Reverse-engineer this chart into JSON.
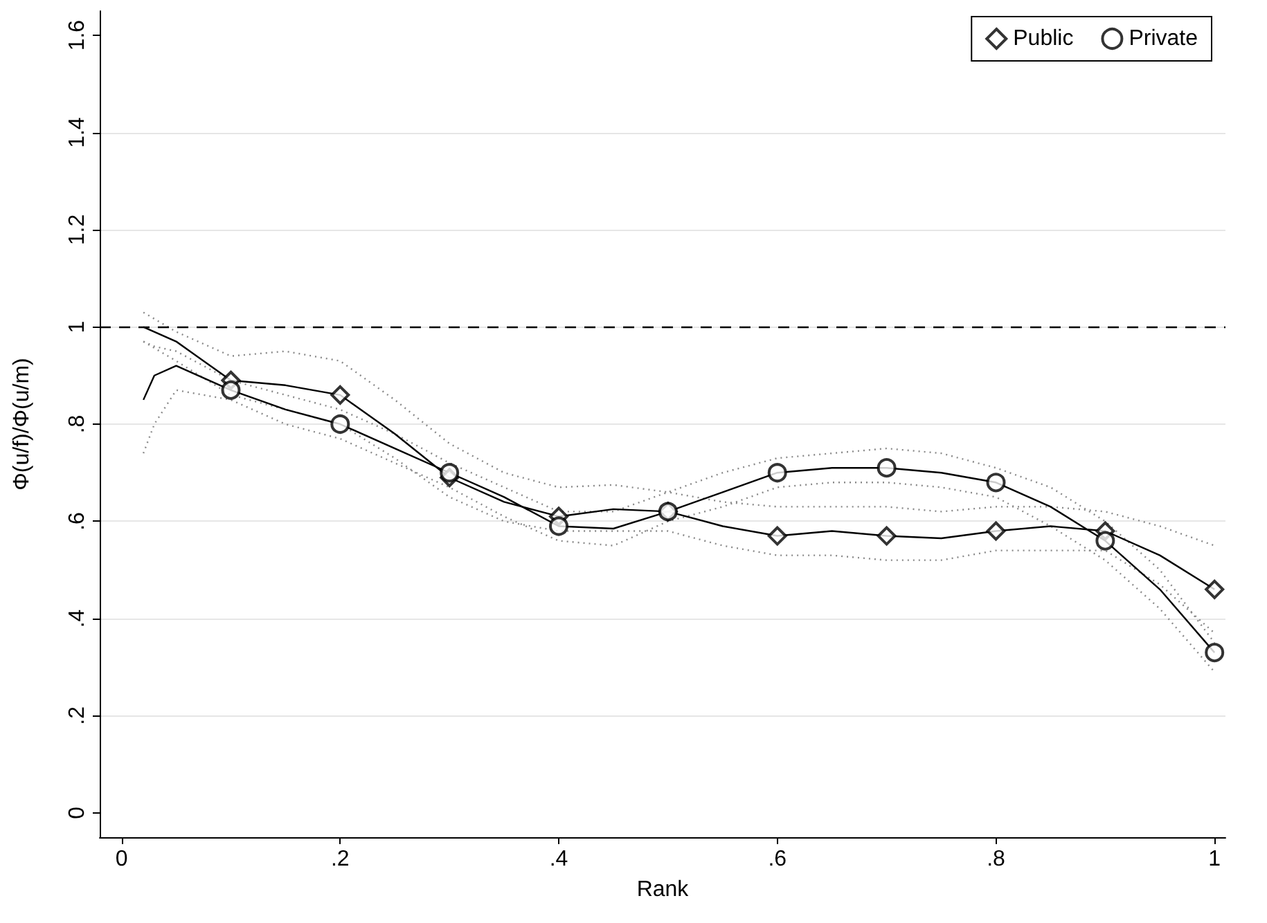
{
  "chart_data": {
    "type": "line",
    "xlabel": "Rank",
    "ylabel": "Φ(u/f)/Φ(u/m)",
    "xlim": [
      -0.02,
      1.01
    ],
    "ylim": [
      -0.05,
      1.65
    ],
    "xticks": [
      0,
      {
        "value": 0.2,
        "label": ".2"
      },
      {
        "value": 0.4,
        "label": ".4"
      },
      {
        "value": 0.6,
        "label": ".6"
      },
      {
        "value": 0.8,
        "label": ".8"
      },
      1
    ],
    "yticks": [
      0,
      {
        "value": 0.2,
        "label": ".2"
      },
      {
        "value": 0.4,
        "label": ".4"
      },
      {
        "value": 0.6,
        "label": ".6"
      },
      {
        "value": 0.8,
        "label": ".8"
      },
      1,
      1.2,
      1.4,
      1.6
    ],
    "grid": "y",
    "legend": "top right",
    "marker": "none",
    "line_style": "solid",
    "ref_lines": [
      {
        "axis": "y",
        "value": 1,
        "line_style": "dashed"
      }
    ],
    "series": [
      {
        "name": "Public",
        "type": "scatter",
        "marker": "diamond",
        "color": "#000000",
        "x": [
          0.1,
          0.2,
          0.3,
          0.4,
          0.5,
          0.6,
          0.7,
          0.8,
          0.9,
          1
        ],
        "values": [
          0.89,
          0.86,
          0.69,
          0.61,
          0.62,
          0.57,
          0.57,
          0.58,
          0.58,
          0.46
        ]
      },
      {
        "name": "Private",
        "type": "scatter",
        "marker": "circle",
        "color": "#000000",
        "x": [
          0.1,
          0.2,
          0.3,
          0.4,
          0.5,
          0.6,
          0.7,
          0.8,
          0.9,
          1
        ],
        "values": [
          0.87,
          0.8,
          0.7,
          0.59,
          0.62,
          0.7,
          0.71,
          0.68,
          0.56,
          0.33
        ]
      },
      {
        "color": "#000000",
        "x": [
          0.02,
          0.05,
          0.1,
          0.15,
          0.2,
          0.25,
          0.3,
          0.35,
          0.4,
          0.45,
          0.5,
          0.55,
          0.6,
          0.65,
          0.7,
          0.75,
          0.8,
          0.85,
          0.9,
          0.95,
          1
        ],
        "values": [
          1.0,
          0.97,
          0.89,
          0.88,
          0.86,
          0.78,
          0.69,
          0.64,
          0.61,
          0.625,
          0.62,
          0.59,
          0.57,
          0.58,
          0.57,
          0.565,
          0.58,
          0.59,
          0.58,
          0.53,
          0.46
        ]
      },
      {
        "color": "#8a8a8a",
        "line_style": "dotted",
        "x": [
          0.02,
          0.05,
          0.1,
          0.15,
          0.2,
          0.25,
          0.3,
          0.35,
          0.4,
          0.45,
          0.5,
          0.55,
          0.6,
          0.65,
          0.7,
          0.75,
          0.8,
          0.85,
          0.9,
          0.95,
          1
        ],
        "values": [
          1.03,
          0.99,
          0.94,
          0.95,
          0.93,
          0.85,
          0.76,
          0.7,
          0.67,
          0.675,
          0.66,
          0.64,
          0.63,
          0.63,
          0.63,
          0.62,
          0.63,
          0.63,
          0.62,
          0.59,
          0.55
        ]
      },
      {
        "color": "#8a8a8a",
        "line_style": "dotted",
        "x": [
          0.02,
          0.05,
          0.1,
          0.15,
          0.2,
          0.25,
          0.3,
          0.35,
          0.4,
          0.45,
          0.5,
          0.55,
          0.6,
          0.65,
          0.7,
          0.75,
          0.8,
          0.85,
          0.9,
          0.95,
          1
        ],
        "values": [
          0.97,
          0.93,
          0.86,
          0.83,
          0.8,
          0.73,
          0.65,
          0.6,
          0.58,
          0.58,
          0.58,
          0.55,
          0.53,
          0.53,
          0.52,
          0.52,
          0.54,
          0.54,
          0.54,
          0.47,
          0.37
        ]
      },
      {
        "color": "#000000",
        "x": [
          0.02,
          0.03,
          0.05,
          0.1,
          0.15,
          0.2,
          0.25,
          0.3,
          0.35,
          0.4,
          0.45,
          0.5,
          0.55,
          0.6,
          0.65,
          0.7,
          0.75,
          0.8,
          0.85,
          0.9,
          0.95,
          1
        ],
        "values": [
          0.85,
          0.9,
          0.92,
          0.87,
          0.83,
          0.8,
          0.75,
          0.7,
          0.65,
          0.59,
          0.585,
          0.62,
          0.66,
          0.7,
          0.71,
          0.71,
          0.7,
          0.68,
          0.63,
          0.56,
          0.46,
          0.33
        ]
      },
      {
        "color": "#8a8a8a",
        "line_style": "dotted",
        "x": [
          0.02,
          0.03,
          0.05,
          0.1,
          0.15,
          0.2,
          0.25,
          0.3,
          0.35,
          0.4,
          0.45,
          0.5,
          0.55,
          0.6,
          0.65,
          0.7,
          0.75,
          0.8,
          0.85,
          0.9,
          0.95,
          1
        ],
        "values": [
          0.97,
          0.96,
          0.95,
          0.89,
          0.86,
          0.83,
          0.78,
          0.72,
          0.67,
          0.62,
          0.62,
          0.66,
          0.7,
          0.73,
          0.74,
          0.75,
          0.74,
          0.71,
          0.67,
          0.6,
          0.5,
          0.35
        ]
      },
      {
        "color": "#8a8a8a",
        "line_style": "dotted",
        "x": [
          0.02,
          0.03,
          0.05,
          0.1,
          0.15,
          0.2,
          0.25,
          0.3,
          0.35,
          0.4,
          0.45,
          0.5,
          0.55,
          0.6,
          0.65,
          0.7,
          0.75,
          0.8,
          0.85,
          0.9,
          0.95,
          1
        ],
        "values": [
          0.74,
          0.8,
          0.87,
          0.85,
          0.8,
          0.77,
          0.72,
          0.67,
          0.61,
          0.56,
          0.55,
          0.6,
          0.63,
          0.67,
          0.68,
          0.68,
          0.67,
          0.65,
          0.59,
          0.52,
          0.42,
          0.29
        ]
      }
    ]
  }
}
